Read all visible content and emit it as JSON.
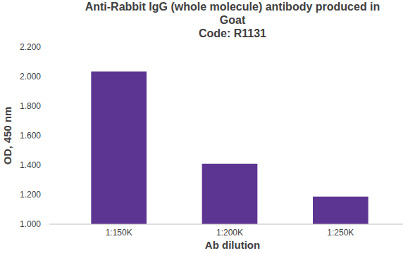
{
  "chart_data": {
    "type": "bar",
    "title": "Anti-Rabbit IgG (whole molecule) antibody produced in Goat",
    "subtitle": "Code: R1131",
    "x_label": "Ab dilution",
    "y_label": "OD, 450 nm",
    "categories": [
      "1:150K",
      "1:200K",
      "1:250K"
    ],
    "values": [
      2.035,
      1.41,
      1.187
    ],
    "color": "#5c3592",
    "ylim": [
      1.0,
      2.2
    ],
    "yticks": [
      {
        "value": 1.0,
        "label": "1.000"
      },
      {
        "value": 1.2,
        "label": "1.200"
      },
      {
        "value": 1.4,
        "label": "1.400"
      },
      {
        "value": 1.6,
        "label": "1.600"
      },
      {
        "value": 1.8,
        "label": "1.800"
      },
      {
        "value": 2.0,
        "label": "2.000"
      },
      {
        "value": 2.2,
        "label": "2.200"
      }
    ],
    "grid": false
  }
}
